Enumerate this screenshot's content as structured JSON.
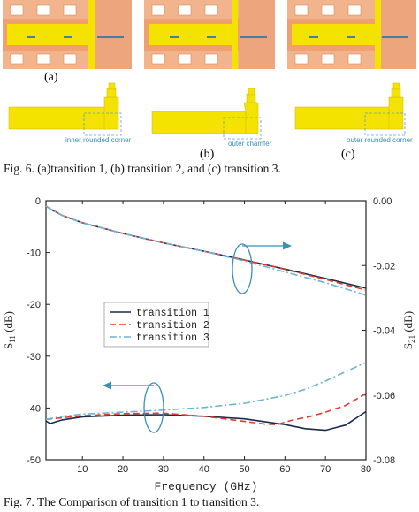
{
  "figure6": {
    "caption": "Fig. 6.  (a)transition 1, (b) transition 2, and (c) transition 3.",
    "subfigures": [
      {
        "label": "(a)",
        "annotation": "inner rounded corner"
      },
      {
        "label": "(b)",
        "annotation": "outer chamfer"
      },
      {
        "label": "(c)",
        "annotation": "outer rounded corner"
      }
    ],
    "colors": {
      "substrate": "#f2b48c",
      "slot": "#ffffff",
      "conductor": "#f4e300",
      "outline": "#d68a5c",
      "probe": "#3f7faa",
      "annotation": "#3a8fb8"
    }
  },
  "figure7": {
    "caption": "Fig. 7.  The Comparison of transition 1 to transition 3.",
    "chart_data": {
      "type": "line",
      "xlabel": "Frequency (GHz)",
      "ylabel_left": "S11 (dB)",
      "ylabel_right": "S21 (dB)",
      "xlim": [
        1,
        80
      ],
      "ylim_left": [
        -50,
        0
      ],
      "ylim_right": [
        -0.08,
        0.0
      ],
      "x_ticks": [
        "10",
        "20",
        "30",
        "40",
        "50",
        "60",
        "70",
        "80"
      ],
      "y_left_ticks": [
        "0",
        "-10",
        "-20",
        "-30",
        "-40",
        "-50"
      ],
      "y_right_ticks": [
        "0.00",
        "-0.02",
        "-0.04",
        "-0.06",
        "-0.08"
      ],
      "legend_position": "center-left",
      "grid": false,
      "series": [
        {
          "name": "transition 1",
          "color": "#1a2b4c",
          "dash": "solid",
          "s11": {
            "x": [
              1,
              2,
              5,
              10,
              20,
              30,
              40,
              50,
              60,
              65,
              70,
              75,
              80
            ],
            "y": [
              -42.5,
              -43.0,
              -42.3,
              -41.7,
              -41.4,
              -41.3,
              -41.6,
              -42.1,
              -43.2,
              -44.0,
              -44.3,
              -43.3,
              -40.7
            ]
          },
          "s21": {
            "x": [
              1,
              2,
              5,
              10,
              20,
              30,
              40,
              50,
              60,
              70,
              80
            ],
            "y": [
              -0.0016,
              -0.0025,
              -0.0045,
              -0.0068,
              -0.0101,
              -0.013,
              -0.0156,
              -0.0183,
              -0.0211,
              -0.024,
              -0.027
            ]
          }
        },
        {
          "name": "transition 2",
          "color": "#e03a2e",
          "dash": "dashed",
          "s11": {
            "x": [
              1,
              5,
              10,
              20,
              30,
              40,
              50,
              55,
              58,
              62,
              66,
              70,
              75,
              80
            ],
            "y": [
              -42.2,
              -41.9,
              -41.5,
              -41.1,
              -41.0,
              -41.6,
              -42.6,
              -43.1,
              -43.2,
              -42.3,
              -41.7,
              -40.8,
              -39.5,
              -37.2
            ]
          },
          "s21": {
            "x": [
              1,
              2,
              5,
              10,
              20,
              30,
              40,
              50,
              60,
              70,
              80
            ],
            "y": [
              -0.0016,
              -0.0025,
              -0.0045,
              -0.0068,
              -0.0101,
              -0.013,
              -0.0156,
              -0.0183,
              -0.0212,
              -0.0243,
              -0.0276
            ]
          }
        },
        {
          "name": "transition 3",
          "color": "#6bb6d6",
          "dash": "dashdot",
          "s11": {
            "x": [
              1,
              5,
              10,
              20,
              30,
              40,
              50,
              60,
              65,
              70,
              75,
              80
            ],
            "y": [
              -42.2,
              -41.6,
              -41.2,
              -40.8,
              -40.4,
              -39.9,
              -39.1,
              -37.6,
              -36.4,
              -34.8,
              -33.0,
              -31.2
            ]
          },
          "s21": {
            "x": [
              1,
              2,
              5,
              10,
              20,
              30,
              40,
              50,
              60,
              70,
              80
            ],
            "y": [
              -0.0016,
              -0.0025,
              -0.0045,
              -0.0068,
              -0.0101,
              -0.013,
              -0.0156,
              -0.0186,
              -0.022,
              -0.0253,
              -0.0292
            ]
          }
        }
      ]
    }
  }
}
